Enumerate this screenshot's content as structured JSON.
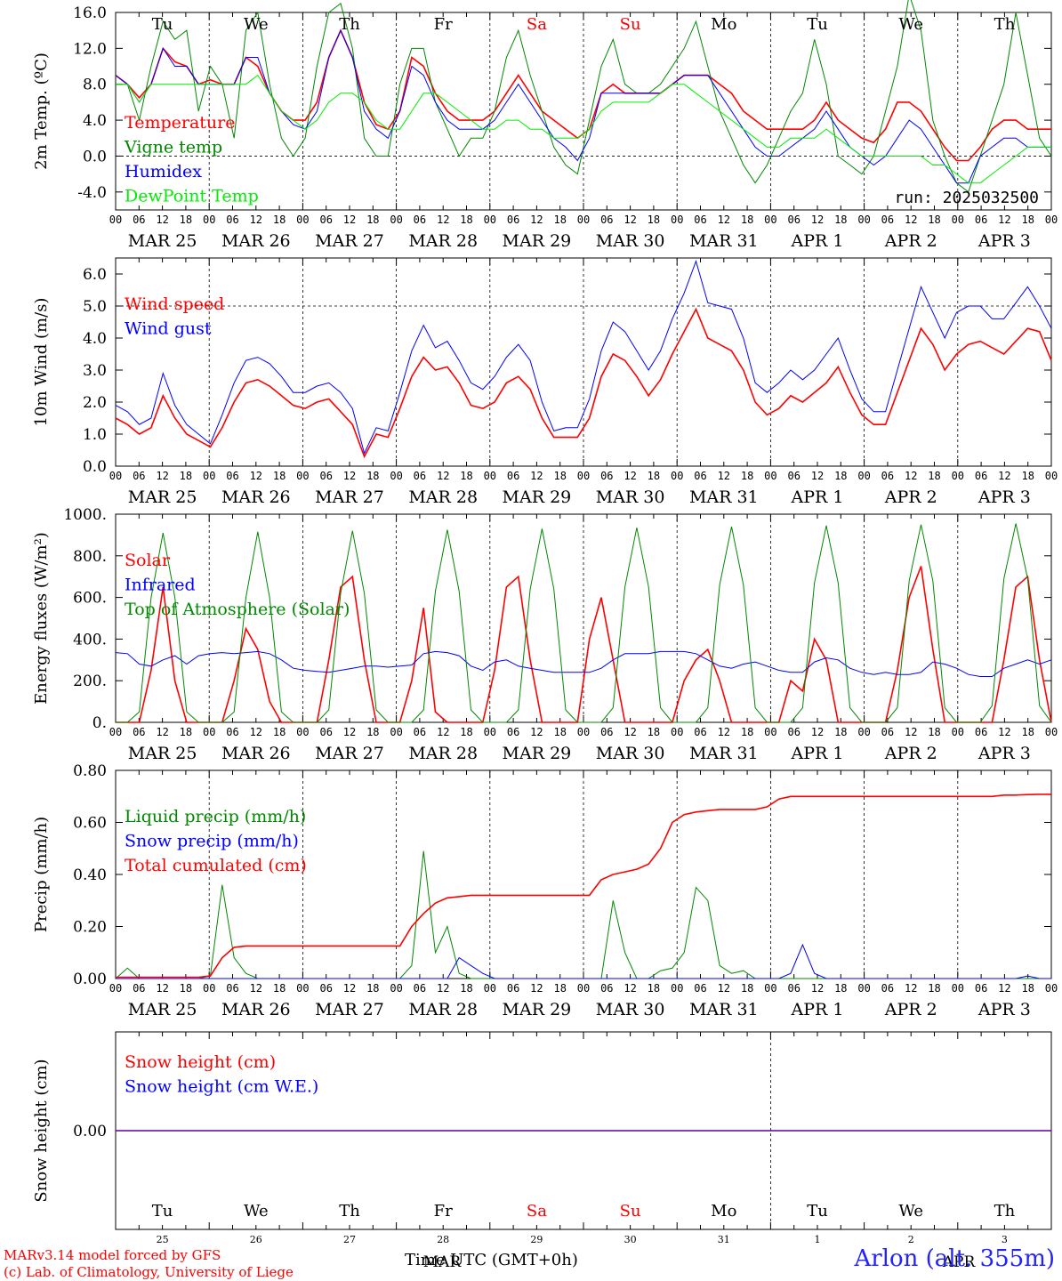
{
  "chart_data": [
    {
      "type": "line",
      "title": "",
      "xlabel": "",
      "ylabel": "2m Temp. (ºC)",
      "ylim": [
        -6,
        16
      ],
      "yticks": [
        "16.0",
        "12.0",
        "8.0",
        "4.0",
        "0.0",
        "-4.0"
      ],
      "run_label": "run: 2025032500",
      "weekday_labels": [
        "Tu",
        "We",
        "Th",
        "Fr",
        "Sa",
        "Su",
        "Mo",
        "Tu",
        "We",
        "Th"
      ],
      "series": [
        {
          "name": "Temperature",
          "color": "#ff0000",
          "values": [
            9,
            8,
            6.5,
            8,
            12,
            10.5,
            10,
            8,
            8.5,
            8,
            8,
            11,
            10,
            7,
            5,
            4,
            4,
            6,
            11,
            14,
            11,
            6,
            3.5,
            3,
            5,
            11,
            10,
            7,
            5,
            4,
            4,
            4,
            5,
            7,
            9,
            7,
            5,
            4,
            3,
            2,
            3,
            7,
            8,
            7,
            7,
            7,
            7,
            8,
            9,
            9,
            9,
            8,
            7,
            5,
            4,
            3,
            3,
            3,
            3,
            4,
            6,
            4,
            3,
            2,
            1.5,
            3,
            6,
            6,
            5,
            3,
            1,
            -0.5,
            -0.5,
            1,
            3,
            4,
            4,
            3,
            3,
            3
          ]
        },
        {
          "name": "Vigne temp",
          "color": "#008800",
          "values": [
            8,
            8,
            4,
            10,
            15,
            13,
            14,
            5,
            10,
            8,
            2,
            14,
            16,
            8,
            2,
            0,
            2,
            10,
            16,
            17,
            12,
            2,
            0,
            0,
            8,
            12,
            12,
            6,
            3,
            0,
            2,
            2,
            5,
            11,
            14,
            9,
            5,
            1,
            -1,
            -2,
            4,
            10,
            13,
            8,
            7,
            7,
            8,
            10,
            12,
            15,
            10,
            5,
            2,
            -1,
            -3,
            -1,
            2,
            5,
            7,
            13,
            8,
            0,
            -1,
            -2,
            0,
            5,
            10,
            18,
            14,
            4,
            0,
            -3,
            -4,
            0,
            4,
            8,
            16,
            9,
            2,
            0
          ]
        },
        {
          "name": "Humidex",
          "color": "#0000ff",
          "values": [
            9,
            8,
            6,
            8,
            12,
            10,
            10,
            8,
            8,
            8,
            8,
            11,
            11,
            7,
            5,
            3.5,
            3,
            5,
            11,
            14,
            11,
            5,
            3,
            2,
            5,
            10,
            9,
            6,
            4,
            3,
            3,
            3,
            4,
            6,
            8,
            6,
            4,
            2,
            1,
            -0.5,
            2,
            7,
            7,
            7,
            7,
            7,
            7,
            8,
            9,
            9,
            9,
            7,
            5,
            3,
            1,
            0,
            0,
            1,
            2,
            3,
            5,
            3,
            1,
            0,
            -1,
            0,
            2,
            4,
            3,
            1,
            -1,
            -3,
            -3,
            0,
            1,
            2,
            2,
            1,
            1,
            1
          ]
        },
        {
          "name": "DewPoint Temp",
          "color": "#00ee00",
          "values": [
            8,
            8,
            6,
            8,
            8,
            8,
            8,
            8,
            8,
            8,
            8,
            8,
            9,
            7,
            5,
            4,
            3,
            4,
            6,
            7,
            7,
            6,
            4,
            3,
            3,
            5,
            7,
            7,
            6,
            5,
            4,
            3,
            3,
            4,
            4,
            3,
            3,
            2,
            2,
            2,
            3,
            5,
            6,
            6,
            6,
            6,
            7,
            8,
            8,
            7,
            6,
            5,
            4,
            3,
            2,
            1,
            1,
            2,
            2,
            2,
            3,
            2,
            1,
            0,
            0,
            0,
            0,
            0,
            0,
            -1,
            -1,
            -2,
            -3,
            -3,
            -2,
            -1,
            0,
            1,
            1,
            1
          ]
        }
      ]
    },
    {
      "type": "line",
      "title": "",
      "xlabel": "",
      "ylabel": "10m Wind (m/s)",
      "ylim": [
        0,
        6.5
      ],
      "yticks": [
        "6.0",
        "5.0",
        "4.0",
        "3.0",
        "2.0",
        "1.0",
        "0.0"
      ],
      "series": [
        {
          "name": "Wind speed",
          "color": "#ff0000",
          "values": [
            1.5,
            1.3,
            1.0,
            1.2,
            2.2,
            1.5,
            1.0,
            0.8,
            0.6,
            1.2,
            2.0,
            2.6,
            2.7,
            2.5,
            2.2,
            1.9,
            1.8,
            2.0,
            2.1,
            1.7,
            1.3,
            0.3,
            1.0,
            0.9,
            1.8,
            2.8,
            3.4,
            3.0,
            3.1,
            2.6,
            1.9,
            1.8,
            2.0,
            2.6,
            2.8,
            2.4,
            1.5,
            0.9,
            0.9,
            0.9,
            1.5,
            2.8,
            3.5,
            3.3,
            2.8,
            2.2,
            2.7,
            3.5,
            4.2,
            4.9,
            4.0,
            3.8,
            3.6,
            3.0,
            2.0,
            1.6,
            1.8,
            2.2,
            2.0,
            2.3,
            2.6,
            3.1,
            2.3,
            1.6,
            1.3,
            1.3,
            2.3,
            3.3,
            4.3,
            3.8,
            3.0,
            3.5,
            3.8,
            3.9,
            3.7,
            3.5,
            3.9,
            4.3,
            4.2,
            3.3
          ]
        },
        {
          "name": "Wind gust",
          "color": "#0000ff",
          "values": [
            1.9,
            1.7,
            1.3,
            1.5,
            2.9,
            1.9,
            1.3,
            1.0,
            0.7,
            1.6,
            2.6,
            3.3,
            3.4,
            3.2,
            2.8,
            2.3,
            2.3,
            2.5,
            2.6,
            2.3,
            1.8,
            0.4,
            1.2,
            1.1,
            2.3,
            3.6,
            4.4,
            3.7,
            3.9,
            3.3,
            2.6,
            2.4,
            2.8,
            3.4,
            3.8,
            3.3,
            2.0,
            1.1,
            1.2,
            1.2,
            2.1,
            3.6,
            4.5,
            4.2,
            3.6,
            3.0,
            3.6,
            4.6,
            5.4,
            6.4,
            5.1,
            5.0,
            4.9,
            4.0,
            2.6,
            2.3,
            2.6,
            3.0,
            2.7,
            3.0,
            3.5,
            4.0,
            3.0,
            2.1,
            1.7,
            1.7,
            3.0,
            4.3,
            5.6,
            4.8,
            4.0,
            4.8,
            5.0,
            5.0,
            4.6,
            4.6,
            5.1,
            5.6,
            5.0,
            4.3
          ]
        }
      ],
      "reference_line": 5.0
    },
    {
      "type": "line",
      "title": "",
      "xlabel": "",
      "ylabel": "Energy fluxes (W/m²)",
      "ylim": [
        0,
        1000
      ],
      "yticks": [
        "1000.",
        "800.",
        "600.",
        "400.",
        "200.",
        "0."
      ],
      "series": [
        {
          "name": "Solar",
          "color": "#ff0000",
          "values": [
            0,
            0,
            0,
            250,
            650,
            200,
            0,
            0,
            0,
            0,
            200,
            450,
            350,
            100,
            0,
            0,
            0,
            0,
            300,
            650,
            700,
            300,
            0,
            0,
            0,
            200,
            550,
            50,
            0,
            0,
            0,
            0,
            250,
            650,
            700,
            300,
            0,
            0,
            0,
            0,
            400,
            600,
            300,
            0,
            0,
            0,
            0,
            0,
            200,
            300,
            350,
            200,
            0,
            0,
            0,
            0,
            0,
            200,
            150,
            400,
            300,
            0,
            0,
            0,
            0,
            0,
            250,
            600,
            750,
            350,
            0,
            0,
            0,
            0,
            0,
            300,
            650,
            700,
            300,
            0
          ]
        },
        {
          "name": "Infrared",
          "color": "#0000ff",
          "values": [
            335,
            330,
            280,
            270,
            300,
            320,
            280,
            320,
            330,
            335,
            330,
            335,
            340,
            330,
            300,
            260,
            250,
            245,
            240,
            250,
            260,
            270,
            270,
            265,
            270,
            275,
            330,
            340,
            335,
            320,
            270,
            250,
            290,
            300,
            270,
            260,
            250,
            240,
            240,
            240,
            240,
            260,
            300,
            330,
            330,
            330,
            340,
            340,
            340,
            330,
            300,
            270,
            260,
            280,
            290,
            270,
            250,
            240,
            240,
            290,
            310,
            300,
            260,
            240,
            230,
            240,
            230,
            230,
            240,
            290,
            280,
            260,
            230,
            220,
            220,
            260,
            280,
            300,
            280,
            300
          ]
        },
        {
          "name": "Top of Atmosphere (Solar)",
          "color": "#008800",
          "values": [
            0,
            0,
            50,
            600,
            910,
            600,
            50,
            0,
            0,
            0,
            50,
            600,
            915,
            600,
            50,
            0,
            0,
            0,
            60,
            620,
            920,
            620,
            60,
            0,
            0,
            0,
            60,
            630,
            925,
            630,
            60,
            0,
            0,
            0,
            60,
            640,
            930,
            640,
            60,
            0,
            0,
            0,
            70,
            650,
            935,
            650,
            70,
            0,
            0,
            0,
            70,
            660,
            940,
            660,
            70,
            0,
            0,
            0,
            70,
            670,
            945,
            670,
            70,
            0,
            0,
            0,
            70,
            680,
            950,
            680,
            70,
            0,
            0,
            0,
            80,
            690,
            955,
            690,
            80,
            0
          ]
        }
      ]
    },
    {
      "type": "line",
      "title": "",
      "xlabel": "",
      "ylabel": "Precip (mm/h)",
      "ylim": [
        0,
        0.8
      ],
      "yticks": [
        "0.80",
        "0.60",
        "0.40",
        "0.20",
        "0.00"
      ],
      "series": [
        {
          "name": "Liquid precip (mm/h)",
          "color": "#008800",
          "values": [
            0,
            0.04,
            0,
            0,
            0,
            0,
            0,
            0,
            0.01,
            0.36,
            0.08,
            0.02,
            0,
            0,
            0,
            0,
            0,
            0,
            0,
            0,
            0,
            0,
            0,
            0,
            0,
            0.05,
            0.49,
            0.1,
            0.2,
            0.02,
            0,
            0,
            0,
            0,
            0,
            0,
            0,
            0,
            0,
            0,
            0,
            0,
            0.3,
            0.1,
            0,
            0,
            0.03,
            0.04,
            0.1,
            0.35,
            0.3,
            0.05,
            0.02,
            0.03,
            0,
            0,
            0,
            0,
            0,
            0,
            0,
            0,
            0,
            0,
            0,
            0,
            0,
            0,
            0,
            0,
            0,
            0,
            0,
            0,
            0,
            0,
            0,
            0,
            0,
            0
          ]
        },
        {
          "name": "Snow precip (mm/h)",
          "color": "#0000ff",
          "values": [
            0,
            0,
            0,
            0,
            0,
            0,
            0,
            0,
            0,
            0,
            0,
            0,
            0,
            0,
            0,
            0,
            0,
            0,
            0,
            0,
            0,
            0,
            0,
            0,
            0,
            0,
            0,
            0,
            0,
            0.08,
            0.05,
            0.02,
            0,
            0,
            0,
            0,
            0,
            0,
            0,
            0,
            0,
            0,
            0,
            0,
            0,
            0,
            0,
            0,
            0,
            0,
            0,
            0,
            0,
            0,
            0,
            0,
            0,
            0.02,
            0.13,
            0.02,
            0,
            0,
            0,
            0,
            0,
            0,
            0,
            0,
            0,
            0,
            0,
            0,
            0,
            0,
            0,
            0,
            0,
            0.01,
            0,
            0
          ]
        },
        {
          "name": "Total cumulated (cm)",
          "color": "#ff0000",
          "values": [
            0.005,
            0.005,
            0.005,
            0.005,
            0.005,
            0.005,
            0.005,
            0.005,
            0.01,
            0.08,
            0.12,
            0.125,
            0.125,
            0.125,
            0.125,
            0.125,
            0.125,
            0.125,
            0.125,
            0.125,
            0.125,
            0.125,
            0.125,
            0.125,
            0.125,
            0.2,
            0.25,
            0.29,
            0.31,
            0.315,
            0.32,
            0.32,
            0.32,
            0.32,
            0.32,
            0.32,
            0.32,
            0.32,
            0.32,
            0.32,
            0.32,
            0.38,
            0.4,
            0.41,
            0.42,
            0.44,
            0.5,
            0.6,
            0.63,
            0.64,
            0.645,
            0.65,
            0.65,
            0.65,
            0.65,
            0.66,
            0.69,
            0.7,
            0.7,
            0.7,
            0.7,
            0.7,
            0.7,
            0.7,
            0.7,
            0.7,
            0.7,
            0.7,
            0.7,
            0.7,
            0.7,
            0.7,
            0.7,
            0.7,
            0.7,
            0.705,
            0.705,
            0.707,
            0.708,
            0.708
          ]
        }
      ]
    },
    {
      "type": "line",
      "title": "",
      "xlabel": "",
      "ylabel": "Snow height (cm)",
      "ylim": [
        -1,
        1
      ],
      "yticks": [
        "0.00"
      ],
      "series": [
        {
          "name": "Snow height (cm)",
          "color": "#ff0000",
          "values": [
            0,
            0
          ]
        },
        {
          "name": "Snow height (cm W.E.)",
          "color": "#0000ff",
          "values": [
            0,
            0
          ]
        }
      ],
      "weekday_labels": [
        "Tu",
        "We",
        "Th",
        "Fr",
        "Sa",
        "Su",
        "Mo",
        "Tu",
        "We",
        "Th"
      ],
      "day_numbers": [
        "25",
        "26",
        "27",
        "28",
        "29",
        "30",
        "31",
        "1",
        "2",
        "3"
      ]
    }
  ],
  "x_axis": {
    "hour_labels": [
      "00",
      "06",
      "12",
      "18"
    ],
    "end_label": "00",
    "date_labels": [
      "MAR 25",
      "MAR 26",
      "MAR 27",
      "MAR 28",
      "MAR 29",
      "MAR 30",
      "MAR 31",
      "APR  1",
      "APR  2",
      "APR  3"
    ]
  },
  "weekend_color": "#ff0000",
  "footer": {
    "credit_line1": "MARv3.14 model forced by GFS",
    "credit_line2": "(c) Lab. of Climatology, University of Liege",
    "axis_title": "Time UTC (GMT+0h)",
    "month_overlay": "MAR",
    "month_overlay_right": "APR",
    "station": "Arlon (alt. 355m)"
  }
}
